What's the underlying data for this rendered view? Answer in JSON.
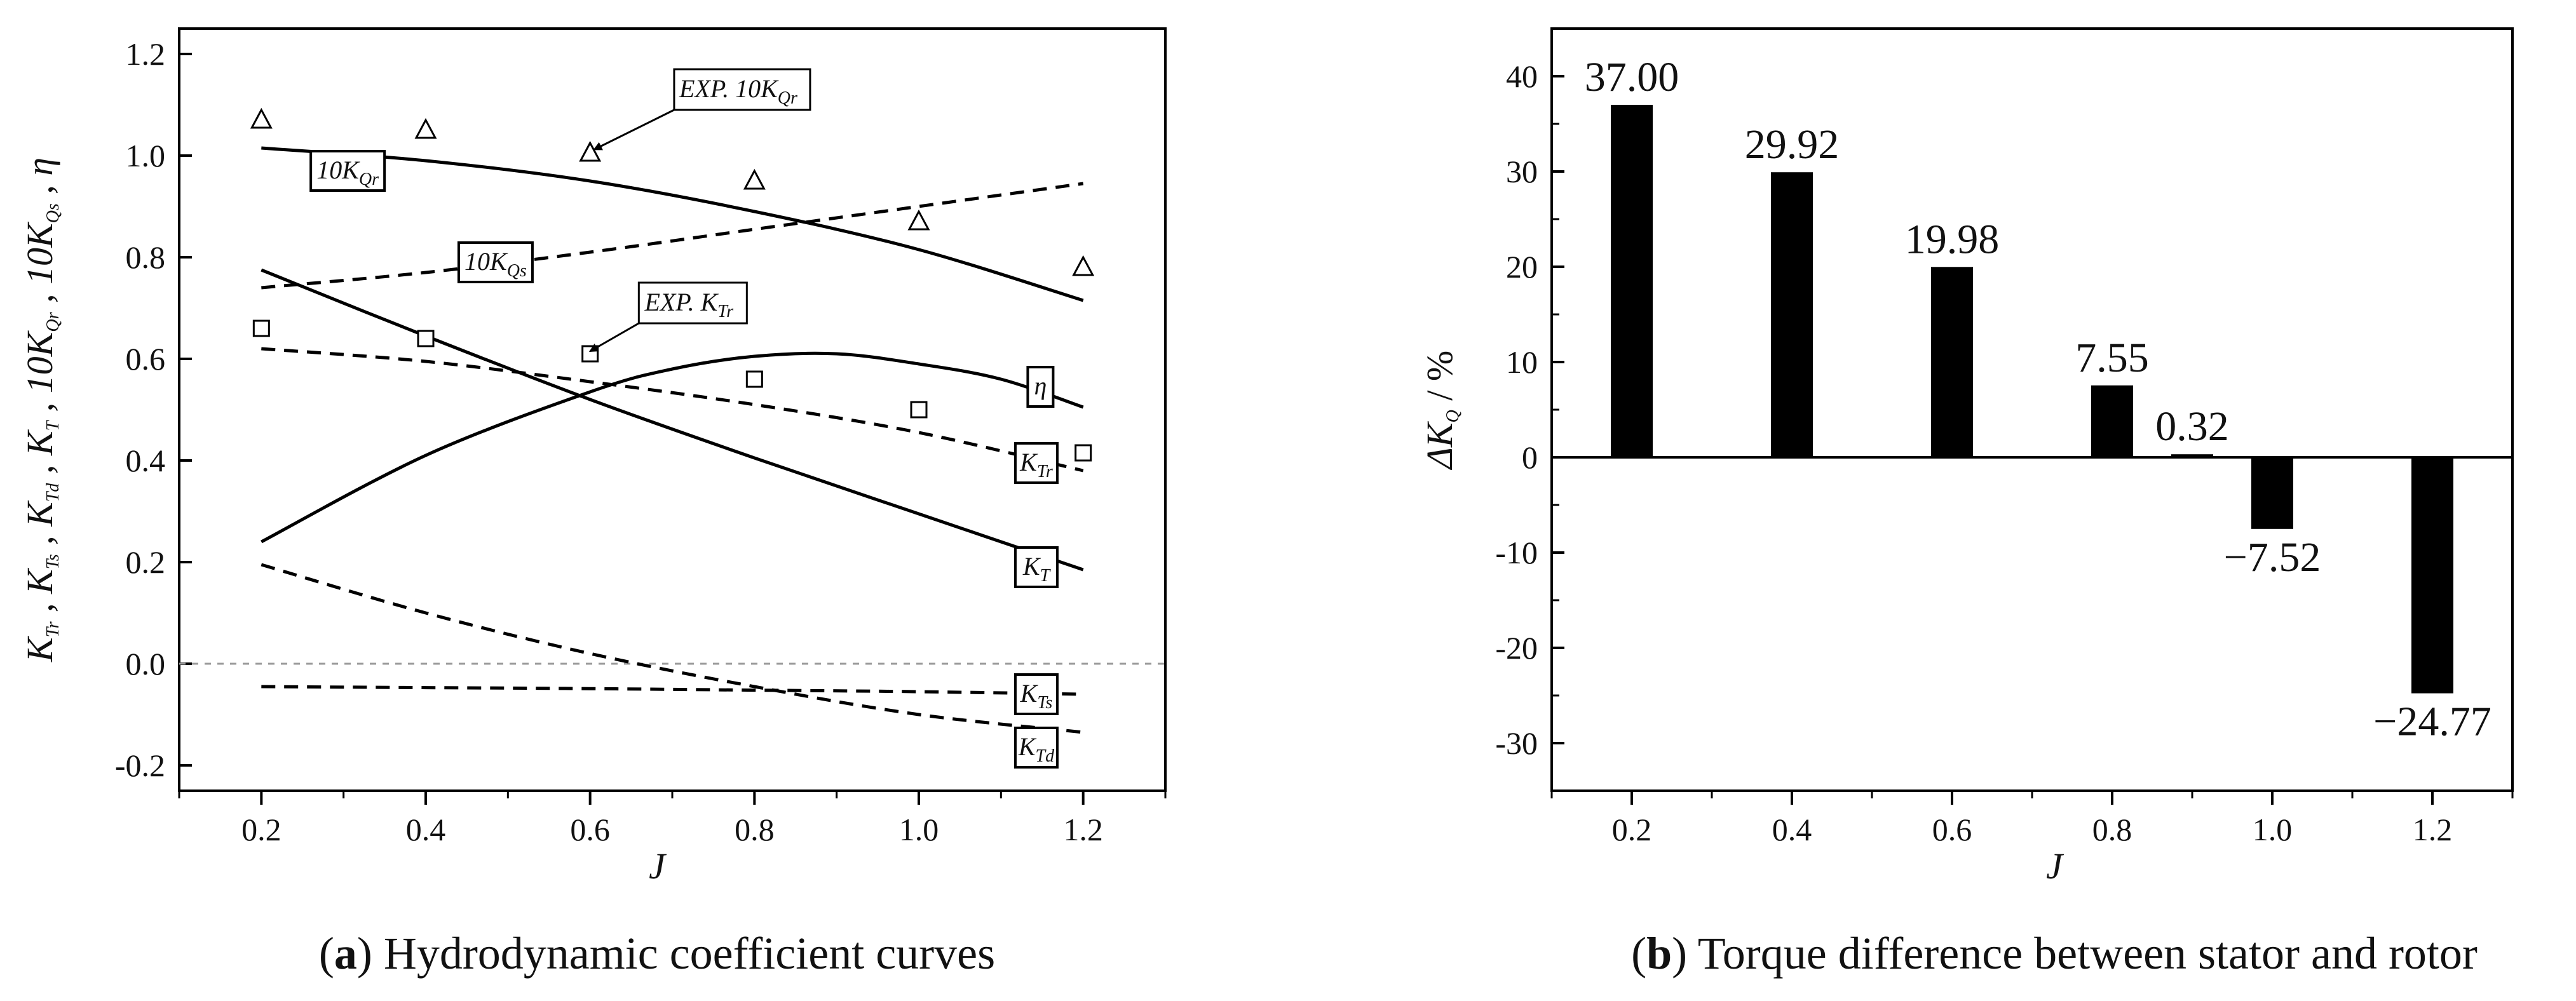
{
  "chart_data": [
    {
      "type": "line",
      "id": "a",
      "caption": {
        "letter": "a",
        "text": " Hydrodynamic coefficient curves"
      },
      "xlabel": "J",
      "ylabel": "KTr , KTs , KTd , KT , 10KQr , 10KQs , η",
      "xlim": [
        0.1,
        1.3
      ],
      "ylim": [
        -0.25,
        1.25
      ],
      "xticks": [
        "0.2",
        "0.4",
        "0.6",
        "0.8",
        "1.0",
        "1.2"
      ],
      "yticks": [
        "-0.2",
        "0.0",
        "0.2",
        "0.4",
        "0.6",
        "0.8",
        "1.0",
        "1.2"
      ],
      "series": [
        {
          "name": "10KQr",
          "style": "solid",
          "x": [
            0.2,
            0.4,
            0.6,
            0.8,
            1.0,
            1.2
          ],
          "y": [
            1.015,
            0.99,
            0.95,
            0.89,
            0.815,
            0.715
          ]
        },
        {
          "name": "10KQs",
          "style": "dashed",
          "x": [
            0.2,
            0.4,
            0.6,
            0.8,
            1.0,
            1.2
          ],
          "y": [
            0.74,
            0.77,
            0.81,
            0.855,
            0.9,
            0.945
          ]
        },
        {
          "name": "KT",
          "style": "solid",
          "x": [
            0.2,
            0.4,
            0.6,
            0.8,
            1.0,
            1.2
          ],
          "y": [
            0.775,
            0.645,
            0.52,
            0.405,
            0.295,
            0.185
          ]
        },
        {
          "name": "η",
          "style": "solid",
          "x": [
            0.2,
            0.4,
            0.6,
            0.7,
            0.8,
            0.9,
            1.0,
            1.1,
            1.2
          ],
          "y": [
            0.24,
            0.41,
            0.535,
            0.58,
            0.605,
            0.61,
            0.59,
            0.56,
            0.505
          ]
        },
        {
          "name": "KTr",
          "style": "dashed",
          "x": [
            0.2,
            0.4,
            0.6,
            0.8,
            1.0,
            1.2
          ],
          "y": [
            0.62,
            0.595,
            0.555,
            0.51,
            0.455,
            0.38
          ]
        },
        {
          "name": "KTs",
          "style": "dashed",
          "x": [
            0.2,
            0.4,
            0.6,
            0.8,
            1.0,
            1.2
          ],
          "y": [
            -0.045,
            -0.047,
            -0.049,
            -0.052,
            -0.055,
            -0.06
          ]
        },
        {
          "name": "KTd",
          "style": "dashed",
          "x": [
            0.2,
            0.4,
            0.6,
            0.8,
            1.0,
            1.2
          ],
          "y": [
            0.195,
            0.1,
            0.02,
            -0.045,
            -0.1,
            -0.135
          ]
        }
      ],
      "markers": [
        {
          "name": "EXP. 10KQr",
          "shape": "triangle",
          "x": [
            0.2,
            0.4,
            0.6,
            0.8,
            1.0,
            1.2
          ],
          "y": [
            1.07,
            1.05,
            1.005,
            0.95,
            0.87,
            0.78
          ]
        },
        {
          "name": "EXP. KTr",
          "shape": "square",
          "x": [
            0.2,
            0.4,
            0.6,
            0.8,
            1.0,
            1.2
          ],
          "y": [
            0.66,
            0.64,
            0.61,
            0.56,
            0.5,
            0.415
          ]
        }
      ],
      "labels": [
        {
          "id": "l10kqr",
          "main": "10K",
          "sub": "Qr",
          "x": 0.305,
          "y": 0.97
        },
        {
          "id": "l10kqs",
          "main": "10K",
          "sub": "Qs",
          "x": 0.485,
          "y": 0.79
        },
        {
          "id": "leta",
          "main": "η",
          "sub": "",
          "x": 1.148,
          "y": 0.545
        },
        {
          "id": "lktr",
          "main": "K",
          "sub": "Tr",
          "x": 1.143,
          "y": 0.395
        },
        {
          "id": "lkt",
          "main": "K",
          "sub": "T",
          "x": 1.143,
          "y": 0.19
        },
        {
          "id": "lkts",
          "main": "K",
          "sub": "Ts",
          "x": 1.143,
          "y": -0.06
        },
        {
          "id": "lktd",
          "main": "K",
          "sub": "Td",
          "x": 1.143,
          "y": -0.165
        }
      ],
      "callouts": [
        {
          "main": "EXP. 10K",
          "sub": "Qr",
          "x": 0.785,
          "y": 1.13,
          "target_x": 0.605,
          "target_y": 1.012
        },
        {
          "main": "EXP. K",
          "sub": "Tr",
          "x": 0.725,
          "y": 0.71,
          "target_x": 0.6,
          "target_y": 0.615
        }
      ]
    },
    {
      "type": "bar",
      "id": "b",
      "caption": {
        "letter": "b",
        "text": " Torque difference between stator and rotor"
      },
      "xlabel": "J",
      "ylabel": "ΔKQ  / %",
      "xlim": [
        0.1,
        1.3
      ],
      "ylim": [
        -35,
        45
      ],
      "xticks": [
        "0.2",
        "0.4",
        "0.6",
        "0.8",
        "1.0",
        "1.2"
      ],
      "yticks": [
        "-30",
        "-20",
        "-10",
        "0",
        "10",
        "20",
        "30",
        "40"
      ],
      "x": [
        0.2,
        0.4,
        0.6,
        0.8,
        0.9,
        1.0,
        1.2
      ],
      "values": [
        37.0,
        29.92,
        19.98,
        7.55,
        0.32,
        -7.52,
        -24.77
      ],
      "data_labels": [
        "37.00",
        "29.92",
        "19.98",
        "7.55",
        "0.32",
        "−7.52",
        "−24.77"
      ]
    }
  ]
}
